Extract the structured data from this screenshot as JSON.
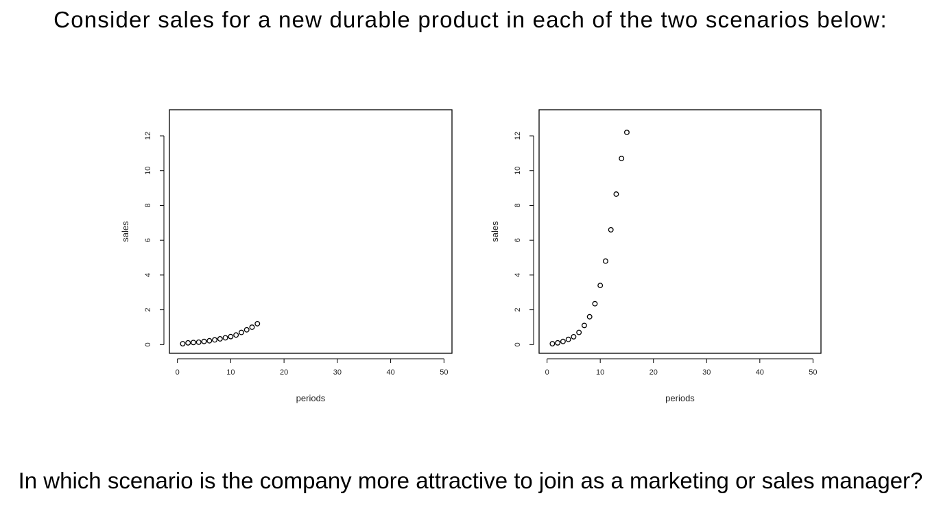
{
  "heading": "Consider sales for a new durable product in each of the two scenarios below:",
  "question": "In which scenario is the company more attractive to join as a marketing or sales manager?",
  "chart_data": [
    {
      "type": "scatter",
      "xlabel": "periods",
      "ylabel": "sales",
      "xlim": [
        -1.5,
        51.5
      ],
      "ylim": [
        -0.5,
        13.5
      ],
      "xticks": [
        0,
        10,
        20,
        30,
        40,
        50
      ],
      "yticks": [
        0,
        2,
        4,
        6,
        8,
        10,
        12
      ],
      "grid": false,
      "x": [
        1,
        2,
        3,
        4,
        5,
        6,
        7,
        8,
        9,
        10,
        11,
        12,
        13,
        14,
        15
      ],
      "y": [
        0.05,
        0.1,
        0.12,
        0.14,
        0.18,
        0.22,
        0.27,
        0.33,
        0.39,
        0.46,
        0.55,
        0.7,
        0.85,
        1.0,
        1.2
      ]
    },
    {
      "type": "scatter",
      "xlabel": "periods",
      "ylabel": "sales",
      "xlim": [
        -1.5,
        51.5
      ],
      "ylim": [
        -0.5,
        13.5
      ],
      "xticks": [
        0,
        10,
        20,
        30,
        40,
        50
      ],
      "yticks": [
        0,
        2,
        4,
        6,
        8,
        10,
        12
      ],
      "grid": false,
      "x": [
        1,
        2,
        3,
        4,
        5,
        6,
        7,
        8,
        9,
        10,
        11,
        12,
        13,
        14,
        15
      ],
      "y": [
        0.05,
        0.1,
        0.18,
        0.3,
        0.45,
        0.7,
        1.1,
        1.6,
        2.35,
        3.4,
        4.8,
        6.6,
        8.65,
        10.7,
        12.2
      ]
    }
  ]
}
